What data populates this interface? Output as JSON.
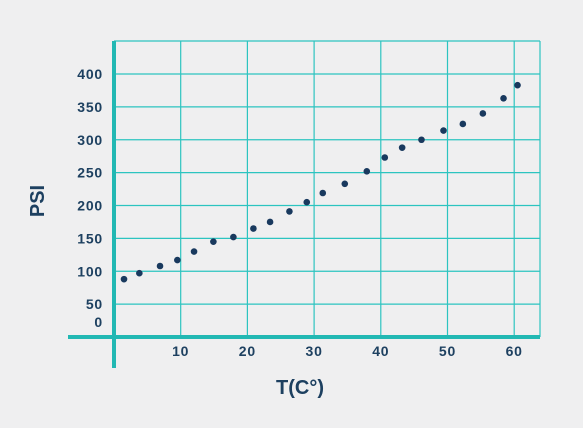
{
  "chart_data": {
    "type": "scatter",
    "title": "",
    "xlabel": "T(C°)",
    "ylabel": "PSI",
    "xlim": [
      0,
      63
    ],
    "ylim": [
      0,
      420
    ],
    "x_ticks": [
      {
        "value": 10,
        "label": "10"
      },
      {
        "value": 20,
        "label": "20"
      },
      {
        "value": 30,
        "label": "30"
      },
      {
        "value": 40,
        "label": "40"
      },
      {
        "value": 50,
        "label": "50"
      },
      {
        "value": 60,
        "label": "60"
      }
    ],
    "y_ticks": [
      {
        "value": 0,
        "label": "0"
      },
      {
        "value": 50,
        "label": "50"
      },
      {
        "value": 100,
        "label": "100"
      },
      {
        "value": 150,
        "label": "150"
      },
      {
        "value": 200,
        "label": "200"
      },
      {
        "value": 250,
        "label": "250"
      },
      {
        "value": 300,
        "label": "300"
      },
      {
        "value": 350,
        "label": "350"
      },
      {
        "value": 400,
        "label": "400"
      }
    ],
    "grid": true,
    "series": [
      {
        "points": [
          {
            "x": 1.5,
            "y": 88
          },
          {
            "x": 3.8,
            "y": 97
          },
          {
            "x": 6.9,
            "y": 108
          },
          {
            "x": 9.5,
            "y": 117
          },
          {
            "x": 12.0,
            "y": 130
          },
          {
            "x": 14.9,
            "y": 145
          },
          {
            "x": 17.9,
            "y": 152
          },
          {
            "x": 20.9,
            "y": 165
          },
          {
            "x": 23.4,
            "y": 175
          },
          {
            "x": 26.3,
            "y": 191
          },
          {
            "x": 28.9,
            "y": 205
          },
          {
            "x": 31.3,
            "y": 219
          },
          {
            "x": 34.6,
            "y": 233
          },
          {
            "x": 37.9,
            "y": 252
          },
          {
            "x": 40.6,
            "y": 273
          },
          {
            "x": 43.2,
            "y": 288
          },
          {
            "x": 46.1,
            "y": 300
          },
          {
            "x": 49.4,
            "y": 314
          },
          {
            "x": 52.3,
            "y": 324
          },
          {
            "x": 55.3,
            "y": 340
          },
          {
            "x": 58.4,
            "y": 363
          },
          {
            "x": 60.5,
            "y": 383
          }
        ]
      }
    ]
  },
  "colors": {
    "background": "#efeff0",
    "grid": "#2cc4c0",
    "axis": "#22b8b3",
    "points": "#19395e",
    "text": "#1d4060"
  }
}
